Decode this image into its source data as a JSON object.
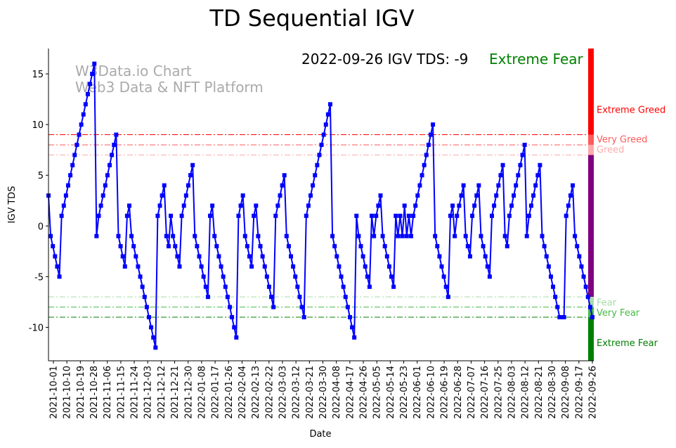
{
  "chart_data": {
    "type": "line",
    "title": "TD Sequential IGV",
    "xlabel": "Date",
    "ylabel": "IGV TDS",
    "ylim": [
      -13.3,
      17.5
    ],
    "yticks": [
      15,
      10,
      5,
      0,
      -5,
      -10
    ],
    "xtick_labels": [
      "2021-10-01",
      "2021-10-10",
      "2021-10-19",
      "2021-10-28",
      "2021-11-06",
      "2021-11-15",
      "2021-11-24",
      "2021-12-03",
      "2021-12-12",
      "2021-12-21",
      "2021-12-30",
      "2022-01-08",
      "2022-01-17",
      "2022-01-26",
      "2022-02-04",
      "2022-02-13",
      "2022-02-22",
      "2022-03-03",
      "2022-03-12",
      "2022-03-21",
      "2022-03-30",
      "2022-04-08",
      "2022-04-17",
      "2022-04-26",
      "2022-05-05",
      "2022-05-14",
      "2022-05-23",
      "2022-06-01",
      "2022-06-10",
      "2022-06-19",
      "2022-06-28",
      "2022-07-07",
      "2022-07-16",
      "2022-07-25",
      "2022-08-03",
      "2022-08-12",
      "2022-08-21",
      "2022-08-30",
      "2022-09-08",
      "2022-09-17",
      "2022-09-26"
    ],
    "series": [
      {
        "name": "IGV TDS",
        "color": "#0000ff",
        "values": [
          3,
          -1,
          -2,
          -3,
          -4,
          -5,
          1,
          2,
          3,
          4,
          5,
          6,
          7,
          8,
          9,
          10,
          11,
          12,
          13,
          14,
          15,
          16,
          -1,
          1,
          2,
          3,
          4,
          5,
          6,
          7,
          8,
          9,
          -1,
          -2,
          -3,
          -4,
          1,
          2,
          -1,
          -2,
          -3,
          -4,
          -5,
          -6,
          -7,
          -8,
          -9,
          -10,
          -11,
          -12,
          1,
          2,
          3,
          4,
          -1,
          -2,
          1,
          -1,
          -2,
          -3,
          -4,
          1,
          2,
          3,
          4,
          5,
          6,
          -1,
          -2,
          -3,
          -4,
          -5,
          -6,
          -7,
          1,
          2,
          -1,
          -2,
          -3,
          -4,
          -5,
          -6,
          -7,
          -8,
          -9,
          -10,
          -11,
          1,
          2,
          3,
          -1,
          -2,
          -3,
          -4,
          1,
          2,
          -1,
          -2,
          -3,
          -4,
          -5,
          -6,
          -7,
          -8,
          1,
          2,
          3,
          4,
          5,
          -1,
          -2,
          -3,
          -4,
          -5,
          -6,
          -7,
          -8,
          -9,
          1,
          2,
          3,
          4,
          5,
          6,
          7,
          8,
          9,
          10,
          11,
          12,
          -1,
          -2,
          -3,
          -4,
          -5,
          -6,
          -7,
          -8,
          -9,
          -10,
          -11,
          1,
          -1,
          -2,
          -3,
          -4,
          -5,
          -6,
          1,
          -1,
          1,
          2,
          3,
          -1,
          -2,
          -3,
          -4,
          -5,
          -6,
          1,
          -1,
          1,
          -1,
          2,
          -1,
          1,
          -1,
          1,
          2,
          3,
          4,
          5,
          6,
          7,
          8,
          9,
          10,
          -1,
          -2,
          -3,
          -4,
          -5,
          -6,
          -7,
          1,
          2,
          -1,
          1,
          2,
          3,
          4,
          -1,
          -2,
          -3,
          1,
          2,
          3,
          4,
          -1,
          -2,
          -3,
          -4,
          -5,
          1,
          2,
          3,
          4,
          5,
          6,
          -1,
          -2,
          1,
          2,
          3,
          4,
          5,
          6,
          7,
          8,
          -1,
          1,
          2,
          3,
          4,
          5,
          6,
          -1,
          -2,
          -3,
          -4,
          -5,
          -6,
          -7,
          -8,
          -9,
          -9,
          -9,
          1,
          2,
          3,
          4,
          -1,
          -2,
          -3,
          -4,
          -5,
          -6,
          -7,
          -8,
          -9
        ]
      }
    ],
    "thresholds": [
      {
        "value": 9,
        "color": "#ff0000"
      },
      {
        "value": 8,
        "color": "#ff5a5a"
      },
      {
        "value": 7,
        "color": "#ffaaaa"
      },
      {
        "value": -7,
        "color": "#a8dca8"
      },
      {
        "value": -8,
        "color": "#44bb44"
      },
      {
        "value": -9,
        "color": "#008000"
      }
    ],
    "zones": [
      {
        "label": "Extreme Greed",
        "from": 9,
        "to": 17.5,
        "color": "#ff0000"
      },
      {
        "label": "Very Greed",
        "from": 8,
        "to": 9,
        "color": "#ff5a5a"
      },
      {
        "label": "Greed",
        "from": 7,
        "to": 8,
        "color": "#ffaaaa"
      },
      {
        "label": "",
        "from": -7,
        "to": 7,
        "color": "#800080"
      },
      {
        "label": "Fear",
        "from": -8,
        "to": -7,
        "color": "#a8dca8"
      },
      {
        "label": "Very Fear",
        "from": -9,
        "to": -8,
        "color": "#44bb44"
      },
      {
        "label": "Extreme Fear",
        "from": -13.3,
        "to": -9,
        "color": "#008000"
      }
    ],
    "annotation": {
      "text": "2022-09-26 IGV TDS: -9",
      "status": "Extreme Fear",
      "status_color": "#008000"
    },
    "watermark": [
      "W3Data.io Chart",
      "Web3 Data & NFT Platform"
    ]
  }
}
